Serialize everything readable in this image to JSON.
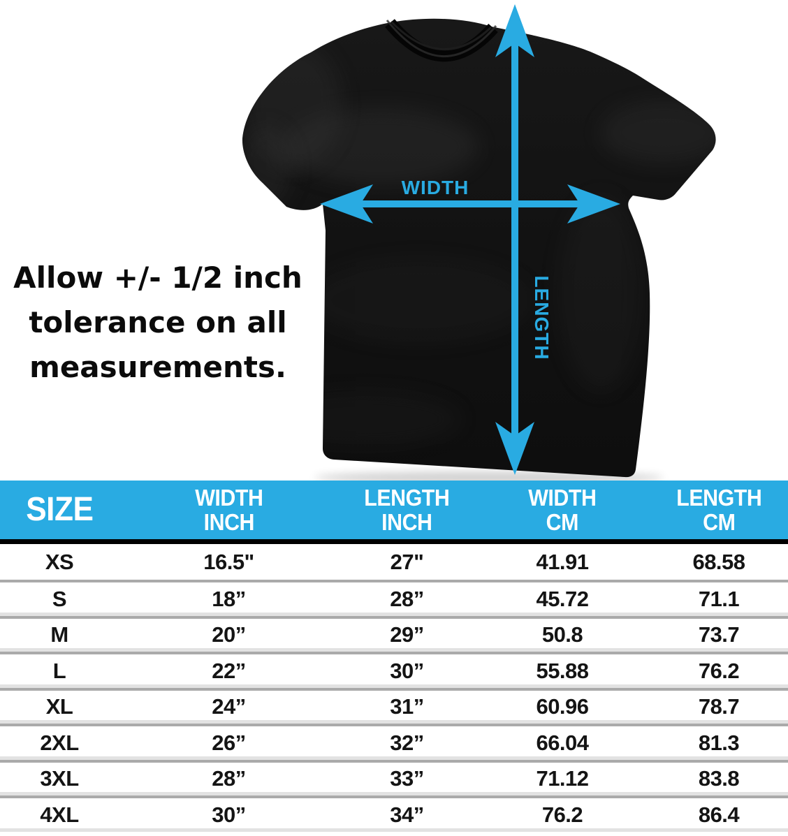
{
  "colors": {
    "accent": "#29ABE2",
    "shirt": "#131313",
    "header_text": "#FFFFFF",
    "body_text": "#0B0B0B",
    "header_divider": "#000000",
    "row_divider": "#AAAAAA"
  },
  "diagram": {
    "width_label": "WIDTH",
    "length_label": "LENGTH",
    "shirt_description": "black t-shirt with measurement arrows"
  },
  "tolerance_note": "Allow +/- 1/2 inch\ntolerance on all\nmeasurements.",
  "table": {
    "headers": [
      "SIZE",
      "WIDTH\nINCH",
      "LENGTH\nINCH",
      "WIDTH\nCM",
      "LENGTH\nCM"
    ],
    "rows": [
      [
        "XS",
        "16.5\"",
        "27\"",
        "41.91",
        "68.58"
      ],
      [
        "S",
        "18”",
        "28”",
        "45.72",
        "71.1"
      ],
      [
        "M",
        "20”",
        "29”",
        "50.8",
        "73.7"
      ],
      [
        "L",
        "22”",
        "30”",
        "55.88",
        "76.2"
      ],
      [
        "XL",
        "24”",
        "31”",
        "60.96",
        "78.7"
      ],
      [
        "2XL",
        "26”",
        "32”",
        "66.04",
        "81.3"
      ],
      [
        "3XL",
        "28”",
        "33”",
        "71.12",
        "83.8"
      ],
      [
        "4XL",
        "30”",
        "34”",
        "76.2",
        "86.4"
      ]
    ]
  }
}
